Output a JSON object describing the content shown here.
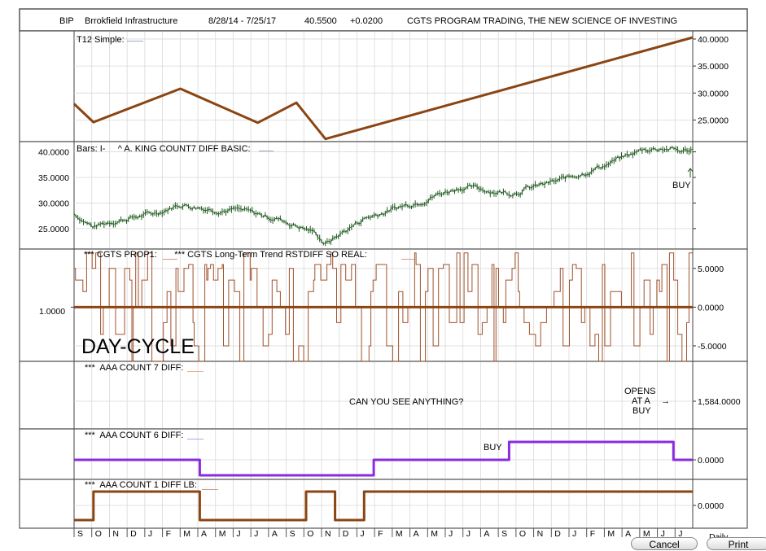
{
  "header": {
    "ticker": "BIP",
    "name": "Brrokfield Infrastructure",
    "range": "8/28/14 - 7/25/17",
    "price": "40.5500",
    "change": "+0.0200",
    "tagline": "CGTS PROGRAM TRADING, THE NEW SCIENCE OF INVESTING"
  },
  "colors": {
    "brown": "#8B4513",
    "purple": "#8A2BE2",
    "green": "#1f5a1f",
    "grid": "#d9d9d9"
  },
  "chart_data": [
    {
      "panel": "t12",
      "type": "line",
      "label": "T12 Simple:",
      "y_ticks": [
        "40.0000",
        "35.0000",
        "30.0000",
        "25.0000"
      ],
      "ylim": [
        21,
        41.5
      ],
      "series": [
        {
          "name": "T12 Simple",
          "x": [
            0,
            2,
            11,
            19,
            23,
            26,
            64
          ],
          "values": [
            28,
            24.6,
            30.8,
            24.5,
            28.2,
            21.5,
            40.3
          ]
        }
      ]
    },
    {
      "panel": "bars",
      "type": "line",
      "label": "Bars: I-     ^ A. KING COUNT7 DIFF BASIC:",
      "y_ticks": [
        "40.0000",
        "35.0000",
        "30.0000",
        "25.0000"
      ],
      "ylim": [
        21,
        42
      ],
      "annotation": "BUY",
      "series": [
        {
          "name": "Bars",
          "x": [
            0,
            2,
            4,
            8,
            11,
            14,
            17,
            21,
            25,
            26,
            30,
            35,
            40,
            45,
            50,
            55,
            59,
            61,
            63,
            64
          ],
          "values": [
            28,
            25.3,
            26.5,
            27.8,
            29.8,
            28.9,
            28.6,
            27,
            24.2,
            22,
            27,
            30,
            33.2,
            32,
            34.2,
            37.5,
            40.5,
            40.8,
            40.1,
            40.5
          ]
        }
      ]
    },
    {
      "panel": "prop1",
      "type": "line",
      "label": "*** CGTS PROP1:       *** CGTS Long-Term Trend RSTDIFF SO REAL:",
      "y_ticks": [
        "5.0000",
        "0.0000",
        "-5.0000"
      ],
      "left_tick": "1.0000",
      "ylim": [
        -7,
        7.5
      ],
      "overlay_text": "DAY-CYCLE",
      "baseline": 0
    },
    {
      "panel": "count7",
      "type": "line",
      "label": "***  AAA COUNT 7 DIFF:",
      "y_ticks": [
        "1,584.0000"
      ],
      "annotations": [
        "CAN YOU SEE ANYTHING?",
        "OPENS",
        "AT A",
        "BUY",
        "→"
      ]
    },
    {
      "panel": "count6",
      "type": "line",
      "label": "***  AAA COUNT 6 DIFF:",
      "y_ticks": [
        "0.0000"
      ],
      "annotation": "BUY",
      "series": [
        {
          "name": "AAA COUNT 6 DIFF",
          "x": [
            0,
            13,
            13,
            31,
            31,
            45,
            45,
            62,
            62,
            64
          ],
          "values": [
            1,
            1,
            0,
            0,
            1,
            1,
            2,
            2,
            1,
            1
          ]
        }
      ]
    },
    {
      "panel": "count1",
      "type": "line",
      "label": "***  AAA COUNT 1 DIFF LB:",
      "y_ticks": [
        "0.0000"
      ],
      "series": [
        {
          "name": "AAA COUNT 1 DIFF LB",
          "x": [
            0,
            2,
            2,
            13,
            13,
            24,
            24,
            27,
            27,
            30,
            30,
            64
          ],
          "values": [
            0,
            0,
            1,
            1,
            0,
            0,
            1,
            1,
            0,
            0,
            1,
            1
          ]
        }
      ]
    }
  ],
  "x_axis": {
    "months": [
      "S",
      "O",
      "N",
      "D",
      "J",
      "F",
      "M",
      "A",
      "M",
      "J",
      "J",
      "A",
      "S",
      "O",
      "N",
      "D",
      "J",
      "F",
      "M",
      "A",
      "M",
      "J",
      "J",
      "A",
      "S",
      "O",
      "N",
      "D",
      "J",
      "F",
      "M",
      "A",
      "M",
      "J",
      "J"
    ],
    "period": "Daily"
  },
  "buttons": {
    "cancel": "Cancel",
    "print": "Print"
  }
}
